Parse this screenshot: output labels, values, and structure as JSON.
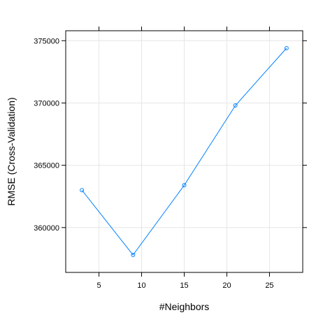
{
  "chart_data": {
    "type": "line",
    "xlabel": "#Neighbors",
    "ylabel": "RMSE (Cross-Validation)",
    "xlim": [
      1.1,
      28.9
    ],
    "ylim": [
      356400,
      375800
    ],
    "x_ticks": [
      5,
      10,
      15,
      20,
      25
    ],
    "y_ticks": [
      360000,
      365000,
      370000,
      375000
    ],
    "x_tick_labels": [
      "5",
      "10",
      "15",
      "20",
      "25"
    ],
    "y_tick_labels": [
      "360000",
      "365000",
      "370000",
      "375000"
    ],
    "grid": true,
    "series": [
      {
        "x": [
          3,
          9,
          15,
          21,
          27
        ],
        "y": [
          363000,
          357800,
          363400,
          369800,
          374400
        ],
        "color": "#0080ff",
        "marker": "circle-open"
      }
    ]
  }
}
